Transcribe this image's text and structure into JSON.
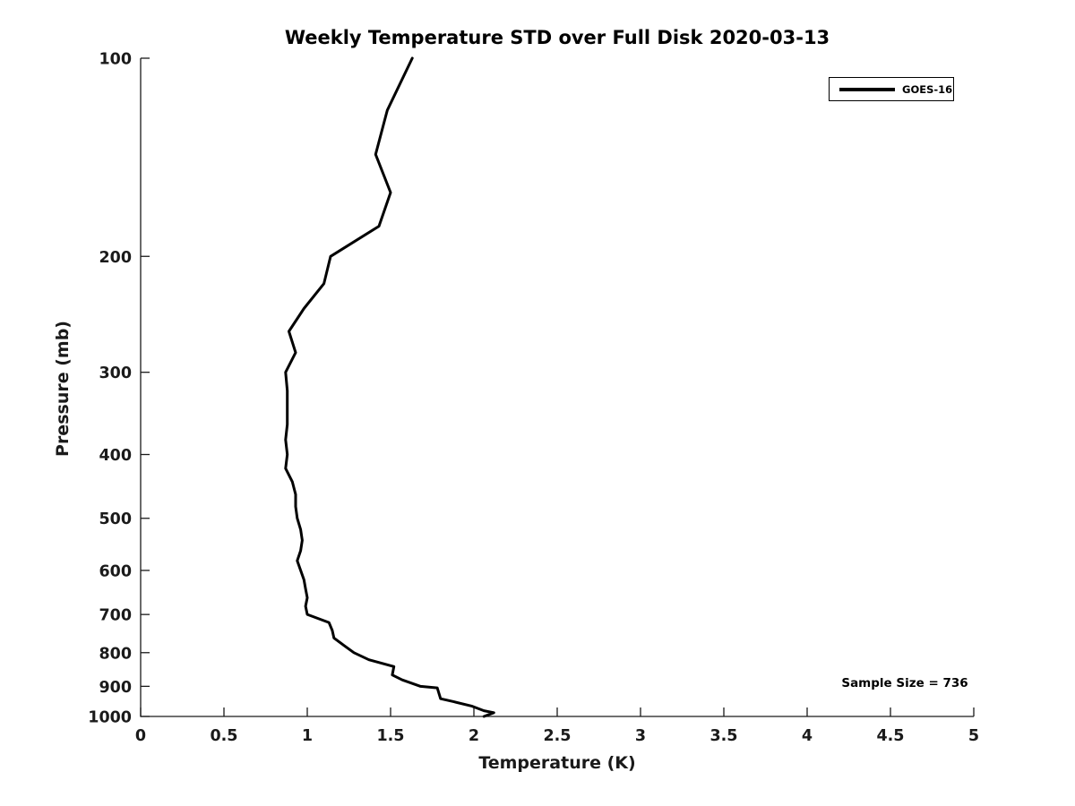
{
  "title": "Weekly Temperature STD over Full Disk 2020-03-13",
  "annotation_text": "Sample Size = 736",
  "legend": {
    "entries": [
      "GOES-16"
    ],
    "position": "top-right"
  },
  "colors": {
    "line": "#000000",
    "axis": "#1a1a1a",
    "text": "#000000",
    "background": "#ffffff"
  },
  "chart_data": {
    "type": "line",
    "title": "Weekly Temperature STD over Full Disk 2020-03-13",
    "xlabel": "Temperature (K)",
    "ylabel": "Pressure (mb)",
    "xlim": [
      0,
      5
    ],
    "xticks": [
      0,
      0.5,
      1,
      1.5,
      2,
      2.5,
      3,
      3.5,
      4,
      4.5,
      5
    ],
    "ylim": [
      100,
      1000
    ],
    "yscale": "log",
    "y_inverted": true,
    "yticks": [
      100,
      200,
      300,
      400,
      500,
      600,
      700,
      800,
      900,
      1000
    ],
    "grid": false,
    "box": false,
    "legend_position": "top-right",
    "annotation": {
      "text": "Sample Size = 736",
      "x": 4.1,
      "y": 930
    },
    "series": [
      {
        "name": "GOES-16",
        "color": "#000000",
        "pressure_mb": [
          100,
          120,
          140,
          160,
          180,
          200,
          220,
          240,
          260,
          280,
          300,
          320,
          340,
          360,
          380,
          400,
          420,
          440,
          460,
          480,
          500,
          520,
          540,
          560,
          580,
          600,
          620,
          640,
          660,
          680,
          700,
          720,
          740,
          760,
          780,
          800,
          820,
          840,
          865,
          880,
          900,
          905,
          940,
          950,
          965,
          980,
          987,
          1000
        ],
        "temperature_std_K": [
          1.63,
          1.48,
          1.41,
          1.5,
          1.43,
          1.14,
          1.1,
          0.98,
          0.89,
          0.93,
          0.87,
          0.88,
          0.88,
          0.88,
          0.87,
          0.88,
          0.87,
          0.91,
          0.93,
          0.93,
          0.94,
          0.96,
          0.97,
          0.96,
          0.94,
          0.96,
          0.98,
          0.99,
          1.0,
          0.99,
          1.0,
          1.13,
          1.15,
          1.16,
          1.22,
          1.28,
          1.37,
          1.52,
          1.51,
          1.57,
          1.68,
          1.78,
          1.8,
          1.88,
          1.99,
          2.06,
          2.12,
          2.06
        ]
      }
    ]
  }
}
